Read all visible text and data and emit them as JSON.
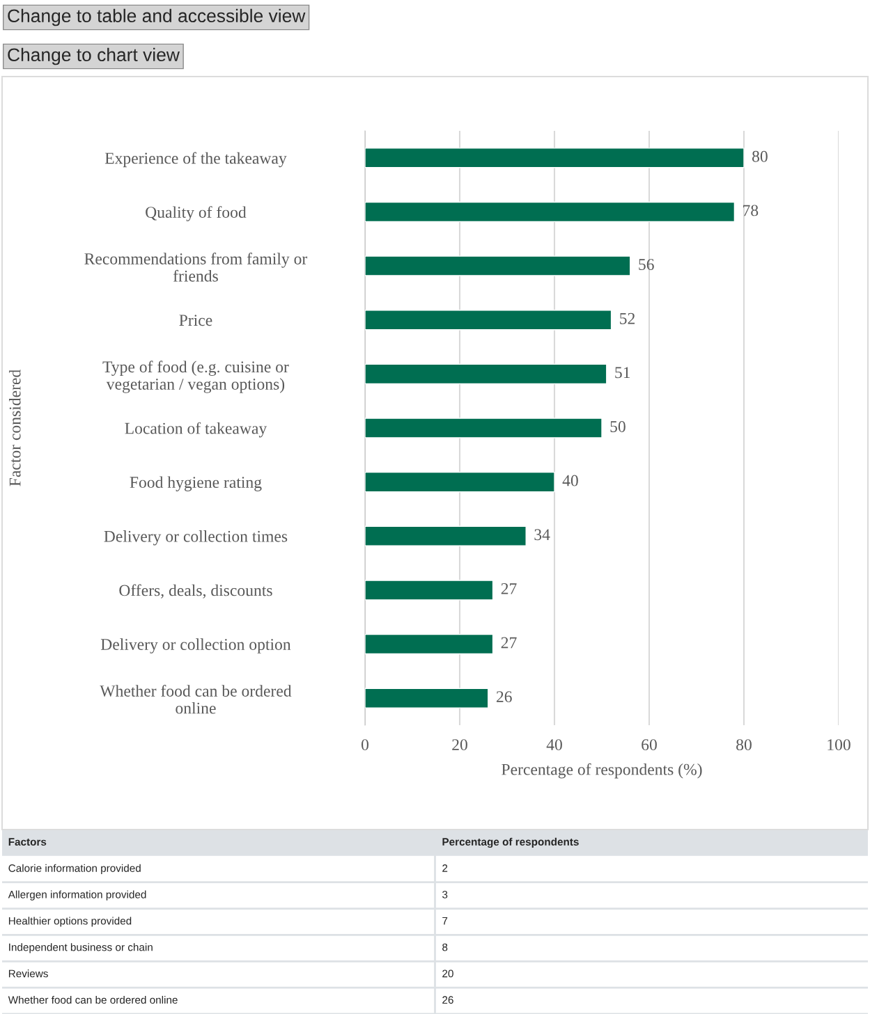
{
  "chart_data": [
    {
      "type": "bar",
      "orientation": "horizontal",
      "categories": [
        "Experience of the takeaway",
        "Quality of food",
        "Recommendations from family or\nfriends",
        "Price",
        "Type of food (e.g. cuisine or\nvegetarian / vegan options)",
        "Location of takeaway",
        "Food hygiene rating",
        "Delivery or collection times",
        "Offers, deals, discounts",
        "Delivery or collection option",
        "Whether food can be ordered\nonline"
      ],
      "values": [
        80,
        78,
        56,
        52,
        51,
        50,
        40,
        34,
        27,
        27,
        26
      ],
      "color": "#006e51",
      "xlim": [
        0,
        100
      ],
      "xticks": [
        0,
        20,
        40,
        60,
        80,
        100
      ],
      "xlabel": "Percentage of respondents (%)",
      "ylabel": "Factor considered",
      "grid": "x",
      "data_labels": true,
      "annotations": [
        "Change to table and accessible view",
        "Change to chart view"
      ]
    },
    {
      "type": "other",
      "xlabel": "Factors",
      "ylabel": "Percentage of respondents",
      "categories": [
        "Calorie information provided",
        "Allergen information provided",
        "Healthier options provided",
        "Independent business or chain",
        "Reviews",
        "Whether food can be ordered online"
      ],
      "values": [
        2,
        3,
        7,
        8,
        20,
        26
      ],
      "data_labels": true
    }
  ]
}
